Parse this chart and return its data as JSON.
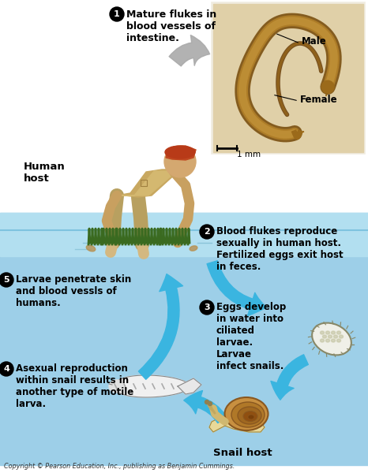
{
  "copyright": "Copyright © Pearson Education, Inc., publishing as Benjamin Cummings.",
  "step1_text": "Mature flukes in\nblood vessels of\nintestine.",
  "step2_text": "Blood flukes reproduce\nsexually in human host.\nFertilized eggs exit host\nin feces.",
  "step3_text": "Eggs develop\nin water into\nciliated\nlarvae.\nLarvae\ninfect snails.",
  "step4_text": "Asexual reproduction\nwithin snail results in\nanother type of motile\nlarva.",
  "step5_text": "Larvae penetrate skin\nand blood vessls of\nhumans.",
  "human_host_label": "Human\nhost",
  "snail_host_label": "Snail host",
  "male_label": "Male",
  "female_label": "Female",
  "scale_label": "1 mm",
  "bg_white": "#ffffff",
  "bg_blue": "#9dcfe8",
  "photo_bg": "#d8c8a0",
  "arrow_blue": "#3ab5e0",
  "arrow_gray": "#aaaaaa",
  "fig_width": 4.66,
  "fig_height": 6.0,
  "dpi": 100
}
